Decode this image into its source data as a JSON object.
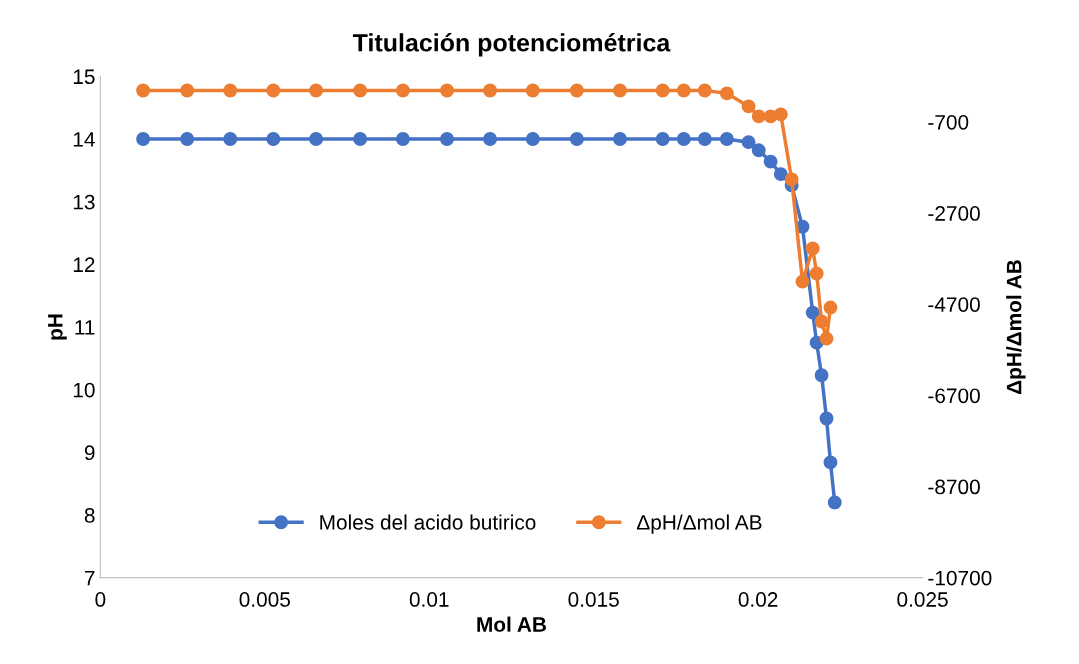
{
  "chart_data": {
    "type": "line",
    "title": "Titulación potenciométrica",
    "xlabel": "Mol AB",
    "ylabel": "pH",
    "y2label": "ΔpH/Δmol AB",
    "x": [
      0.0013,
      0.00264,
      0.00395,
      0.00526,
      0.00656,
      0.0079,
      0.0092,
      0.01054,
      0.01185,
      0.01315,
      0.01449,
      0.0158,
      0.0171,
      0.01774,
      0.01838,
      0.01905,
      0.01971,
      0.02002,
      0.02038,
      0.02069,
      0.02102,
      0.02135,
      0.02166,
      0.02178,
      0.02193,
      0.02208,
      0.0222,
      0.02233
    ],
    "series": [
      {
        "name": "Moles del acido butirico",
        "color": "#4472c4",
        "values": [
          14.0,
          14.0,
          14.0,
          14.0,
          14.0,
          14.0,
          14.0,
          14.0,
          14.0,
          14.0,
          14.0,
          14.0,
          14.0,
          14.0,
          14.0,
          14.0,
          13.95,
          13.82,
          13.64,
          13.44,
          13.26,
          12.6,
          11.23,
          10.75,
          10.23,
          9.54,
          8.84,
          8.2
        ]
      },
      {
        "name": "ΔpH/Δmol AB",
        "color": "#ed7d31",
        "axis": "y2",
        "values": [
          -10,
          -10,
          -10,
          -10,
          -10,
          -10,
          -10,
          -10,
          -10,
          -10,
          -10,
          -10,
          -10,
          -10,
          -10,
          -73,
          -359,
          -578,
          -578,
          -534,
          -1962,
          -4202,
          -3477,
          -4026,
          -5080,
          -5454,
          -4773,
          null
        ]
      }
    ],
    "xlim": [
      0,
      0.025
    ],
    "xticks": [
      0,
      0.005,
      0.01,
      0.015,
      0.02,
      0.025
    ],
    "ylim": [
      7,
      15
    ],
    "yticks": [
      7,
      8,
      9,
      10,
      11,
      12,
      13,
      14,
      15
    ],
    "y2lim": [
      -10700,
      300
    ],
    "y2ticks": [
      -10700,
      -8700,
      -6700,
      -4700,
      -2700,
      -700
    ],
    "grid": false,
    "legend": "bottom",
    "marker": "circle",
    "line_style": "solid"
  }
}
